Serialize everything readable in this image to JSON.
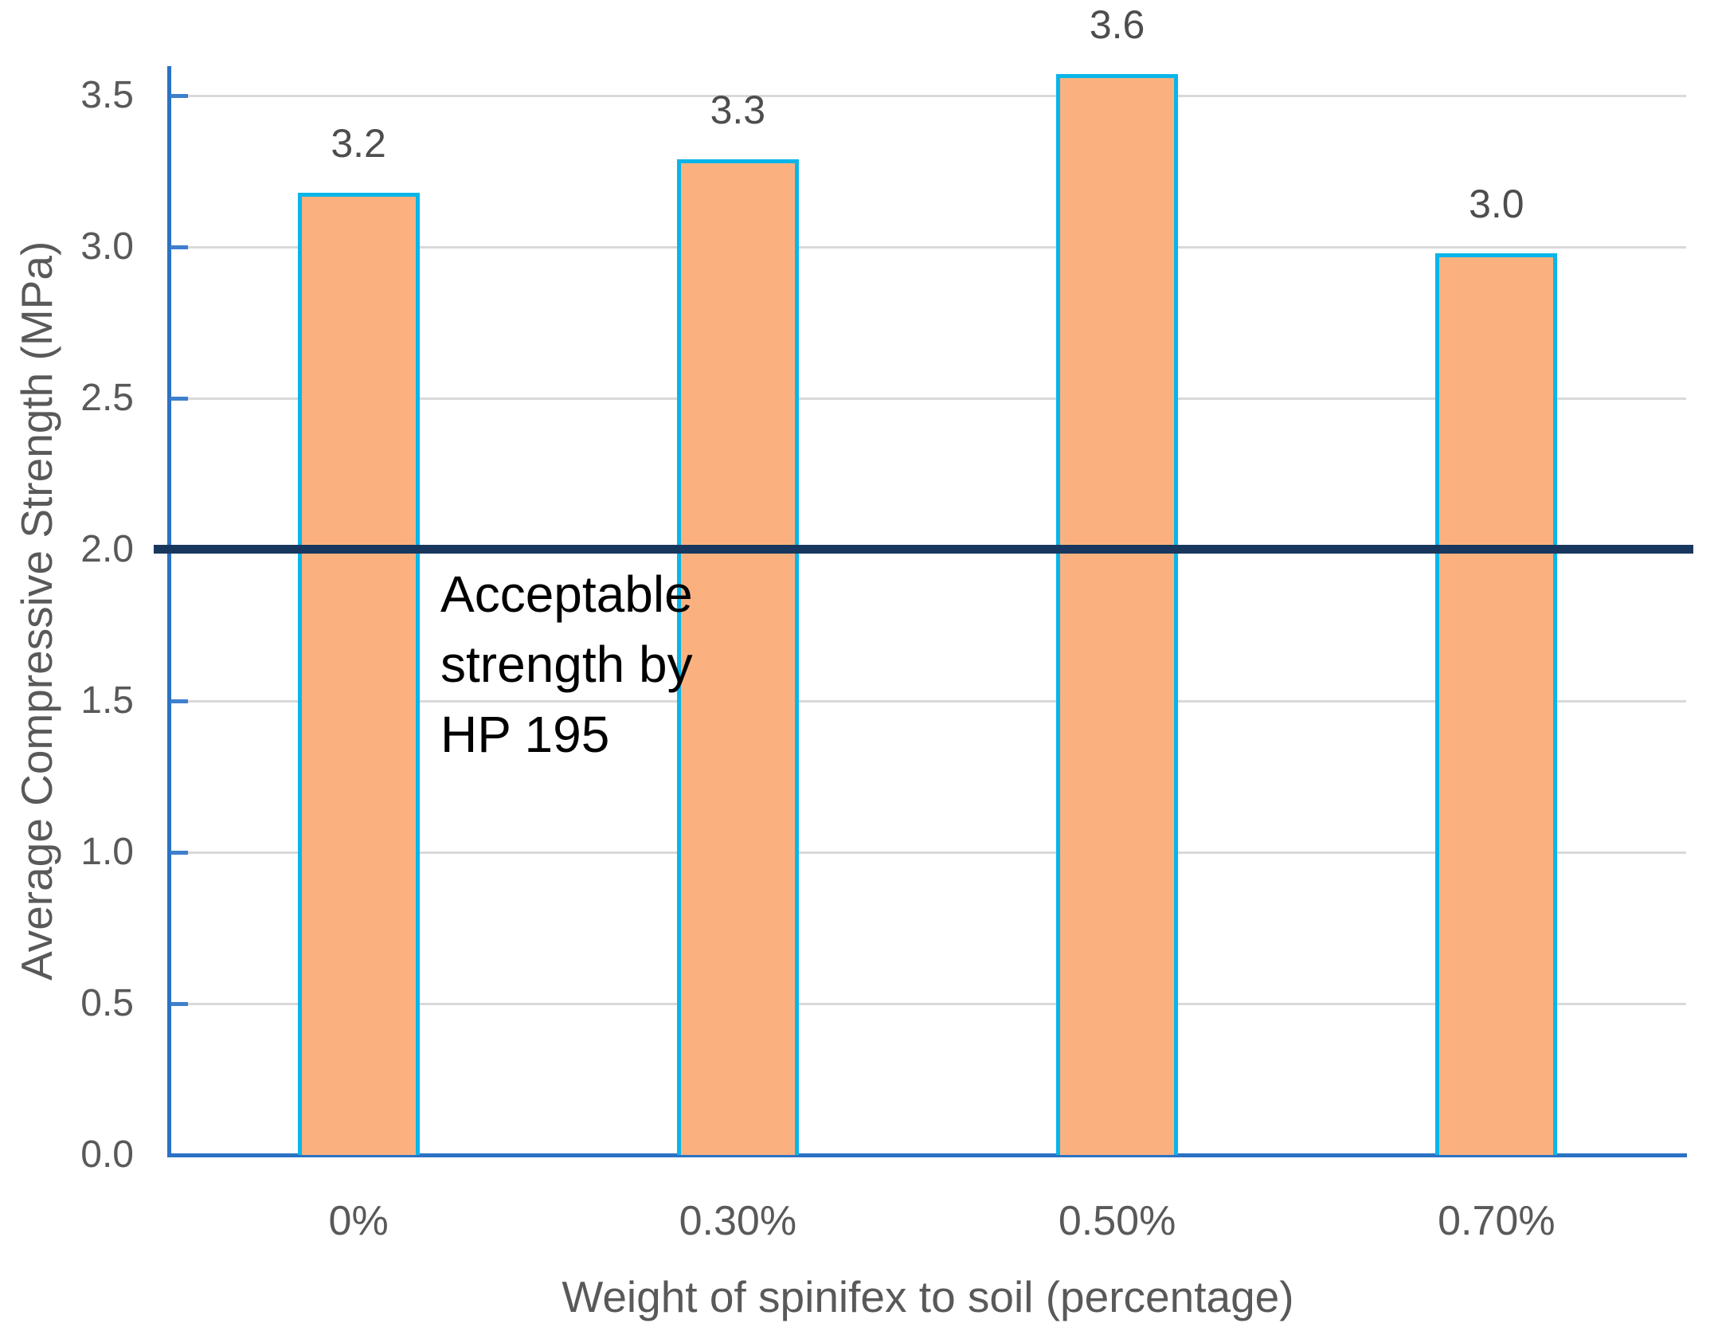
{
  "chart_data": {
    "type": "bar",
    "title": "",
    "xlabel": "Weight of spinifex to soil (percentage)",
    "ylabel": "Average Compressive Strength (MPa)",
    "categories": [
      "0%",
      "0.30%",
      "0.50%",
      "0.70%"
    ],
    "values": [
      3.18,
      3.29,
      3.57,
      2.98
    ],
    "bar_labels": [
      "3.2",
      "3.3",
      "3.6",
      "3.0"
    ],
    "ylim": [
      0,
      3.65
    ],
    "ytick_labels": [
      "0.0",
      "0.5",
      "1.0",
      "1.5",
      "2.0",
      "2.5",
      "3.0",
      "3.5"
    ],
    "grid": true,
    "legend": "none",
    "reference_line": {
      "value": 2.0,
      "annotation": "Acceptable\nstrength by\nHP 195"
    },
    "colors": {
      "bar_fill": "#FBB17F",
      "bar_border": "#0AB5E8",
      "axis_line": "#2B72C4",
      "tick_mark": "#3E80CC",
      "gridline": "#D9D9D9",
      "reference_line": "#17375E",
      "tick_label_text": "#595959",
      "axis_title_text": "#595959",
      "bar_label_text": "#4D4D4D",
      "annotation_text": "#000000"
    }
  }
}
